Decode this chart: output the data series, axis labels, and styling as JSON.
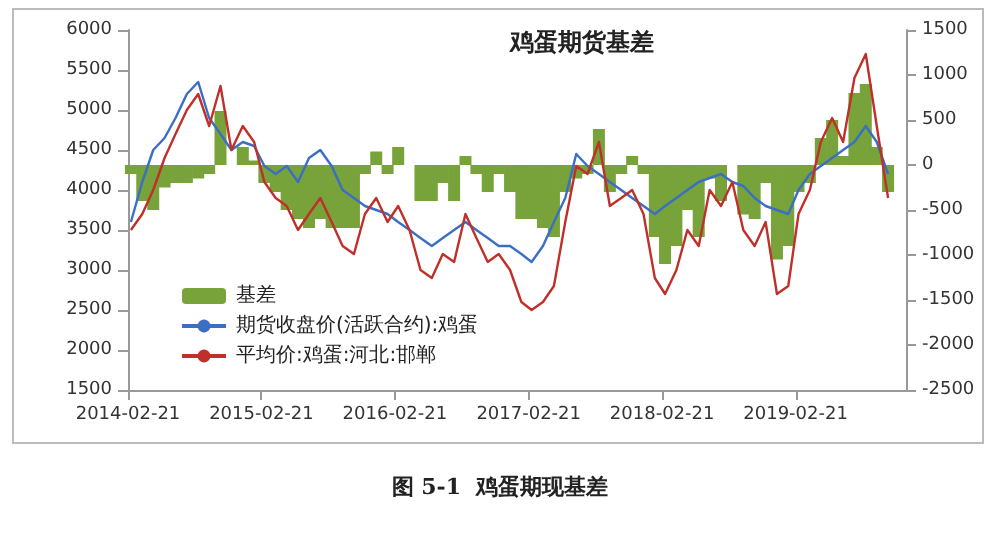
{
  "chart_data": {
    "type": "line",
    "title": "鸡蛋期货基差",
    "x": [
      "2014-03",
      "2014-04",
      "2014-05",
      "2014-06",
      "2014-07",
      "2014-08",
      "2014-09",
      "2014-10",
      "2014-11",
      "2014-12",
      "2015-01",
      "2015-02",
      "2015-03",
      "2015-04",
      "2015-05",
      "2015-06",
      "2015-07",
      "2015-08",
      "2015-09",
      "2015-10",
      "2015-11",
      "2015-12",
      "2016-01",
      "2016-02",
      "2016-03",
      "2016-04",
      "2016-05",
      "2016-06",
      "2016-07",
      "2016-08",
      "2016-09",
      "2016-10",
      "2016-11",
      "2016-12",
      "2017-01",
      "2017-02",
      "2017-03",
      "2017-04",
      "2017-05",
      "2017-06",
      "2017-07",
      "2017-08",
      "2017-09",
      "2017-10",
      "2017-11",
      "2017-12",
      "2018-01",
      "2018-02",
      "2018-03",
      "2018-04",
      "2018-05",
      "2018-06",
      "2018-07",
      "2018-08",
      "2018-09",
      "2018-10",
      "2018-11",
      "2018-12",
      "2019-01",
      "2019-02",
      "2019-03",
      "2019-04",
      "2019-05",
      "2019-06",
      "2019-07",
      "2019-08",
      "2019-09",
      "2019-10",
      "2019-11"
    ],
    "series": [
      {
        "name": "基差",
        "type": "bar",
        "axis": "y2",
        "color": "#77a33a",
        "values": [
          -100,
          -400,
          -500,
          -250,
          -200,
          -200,
          -150,
          -100,
          600,
          0,
          200,
          50,
          -200,
          -300,
          -500,
          -600,
          -700,
          -600,
          -700,
          -700,
          -700,
          -100,
          150,
          -100,
          200,
          0,
          -400,
          -400,
          -200,
          -400,
          100,
          -100,
          -300,
          -100,
          -300,
          -600,
          -600,
          -700,
          -800,
          -300,
          -150,
          -100,
          400,
          -300,
          -100,
          100,
          -100,
          -800,
          -1100,
          -900,
          -500,
          -800,
          -150,
          -400,
          0,
          -550,
          -600,
          -200,
          -1050,
          -900,
          -300,
          -200,
          300,
          500,
          100,
          800,
          900,
          200,
          -300
        ]
      },
      {
        "name": "期货收盘价(活跃合约):鸡蛋",
        "color": "#3a6fc4",
        "values": [
          3600,
          4100,
          4500,
          4650,
          4900,
          5200,
          5350,
          4900,
          4700,
          4500,
          4600,
          4550,
          4300,
          4200,
          4300,
          4100,
          4400,
          4500,
          4300,
          4000,
          3900,
          3800,
          3750,
          3700,
          3600,
          3500,
          3400,
          3300,
          3400,
          3500,
          3600,
          3500,
          3400,
          3300,
          3300,
          3200,
          3100,
          3300,
          3600,
          3900,
          4450,
          4300,
          4200,
          4100,
          4000,
          3900,
          3800,
          3700,
          3800,
          3900,
          4000,
          4100,
          4150,
          4200,
          4100,
          4050,
          3900,
          3800,
          3750,
          3700,
          4000,
          4200,
          4300,
          4400,
          4500,
          4600,
          4800,
          4600,
          4200
        ]
      },
      {
        "name": "平均价:鸡蛋:河北:邯郸",
        "color": "#c0302a",
        "values": [
          3500,
          3700,
          4000,
          4400,
          4700,
          5000,
          5200,
          4800,
          5300,
          4500,
          4800,
          4600,
          4100,
          3900,
          3800,
          3500,
          3700,
          3900,
          3600,
          3300,
          3200,
          3700,
          3900,
          3600,
          3800,
          3500,
          3000,
          2900,
          3200,
          3100,
          3700,
          3400,
          3100,
          3200,
          3000,
          2600,
          2500,
          2600,
          2800,
          3600,
          4300,
          4200,
          4600,
          3800,
          3900,
          4000,
          3700,
          2900,
          2700,
          3000,
          3500,
          3300,
          4000,
          3800,
          4100,
          3500,
          3300,
          3600,
          2700,
          2800,
          3700,
          4000,
          4600,
          4900,
          4600,
          5400,
          5700,
          4800,
          3900
        ]
      }
    ],
    "xlim": [
      "2014-02-21",
      "2019-12-20"
    ],
    "xticks": [
      "2014-02-21",
      "2015-02-21",
      "2016-02-21",
      "2017-02-21",
      "2018-02-21",
      "2019-02-21"
    ],
    "ylim": [
      1500,
      6000
    ],
    "yticks": [
      1500,
      2000,
      2500,
      3000,
      3500,
      4000,
      4500,
      5000,
      5500,
      6000
    ],
    "y2lim": [
      -2500,
      1500
    ],
    "y2ticks": [
      -2500,
      -2000,
      -1500,
      -1000,
      -500,
      0,
      500,
      1000,
      1500
    ],
    "legend": "bottom left",
    "grid": false,
    "marker": "none",
    "annotations": [
      "图 5-1  鸡蛋期现基差"
    ]
  }
}
